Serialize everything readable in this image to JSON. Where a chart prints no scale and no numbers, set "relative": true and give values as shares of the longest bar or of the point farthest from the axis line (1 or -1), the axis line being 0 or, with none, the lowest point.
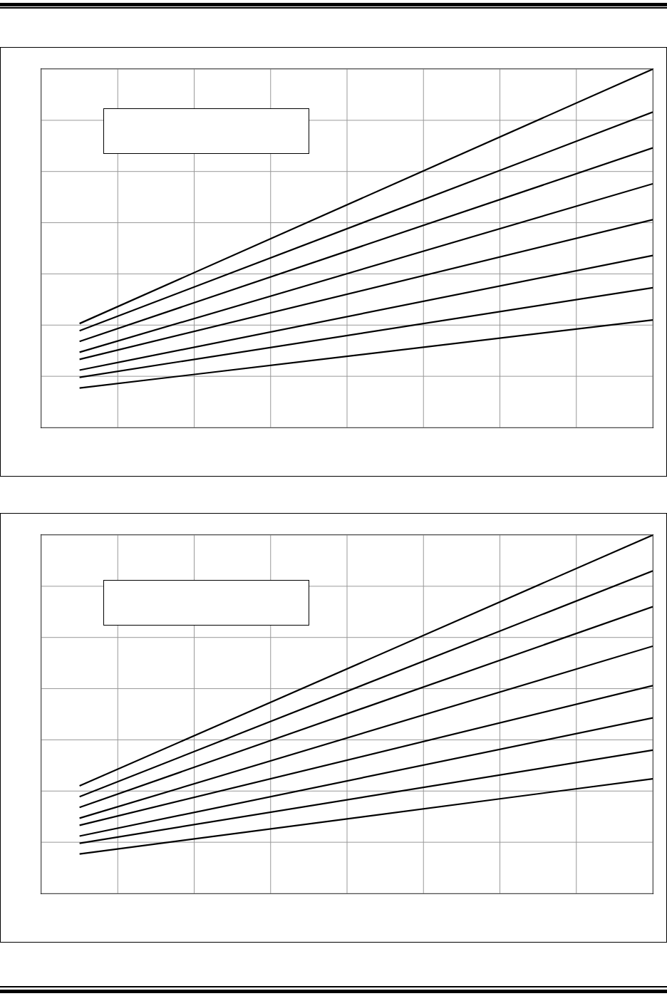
{
  "chart_data": [
    {
      "type": "line",
      "relative": true,
      "grid": true,
      "legend": false,
      "marker": "none",
      "line_style": "solid",
      "categories": [
        null,
        null,
        null,
        null,
        null,
        null,
        null,
        null,
        null,
        null,
        null,
        null,
        null,
        null,
        null,
        null,
        null
      ],
      "series": [
        {
          "color": "#000000",
          "values": [
            null,
            0.29,
            null,
            null,
            null,
            null,
            null,
            null,
            null,
            null,
            null,
            null,
            null,
            null,
            null,
            null,
            1
          ]
        },
        {
          "color": "#000000",
          "values": [
            null,
            0.27,
            null,
            null,
            null,
            null,
            null,
            null,
            null,
            null,
            null,
            null,
            null,
            null,
            null,
            null,
            0.88
          ]
        },
        {
          "color": "#000000",
          "values": [
            null,
            0.24,
            null,
            null,
            null,
            null,
            null,
            null,
            null,
            null,
            null,
            null,
            null,
            null,
            null,
            null,
            0.78
          ]
        },
        {
          "color": "#000000",
          "values": [
            null,
            0.21,
            null,
            null,
            null,
            null,
            null,
            null,
            null,
            null,
            null,
            null,
            null,
            null,
            null,
            null,
            0.68
          ]
        },
        {
          "color": "#000000",
          "values": [
            null,
            0.19,
            null,
            null,
            null,
            null,
            null,
            null,
            null,
            null,
            null,
            null,
            null,
            null,
            null,
            null,
            0.58
          ]
        },
        {
          "color": "#000000",
          "values": [
            null,
            0.16,
            null,
            null,
            null,
            null,
            null,
            null,
            null,
            null,
            null,
            null,
            null,
            null,
            null,
            null,
            0.48
          ]
        },
        {
          "color": "#000000",
          "values": [
            null,
            0.14,
            null,
            null,
            null,
            null,
            null,
            null,
            null,
            null,
            null,
            null,
            null,
            null,
            null,
            null,
            0.39
          ]
        },
        {
          "color": "#000000",
          "values": [
            null,
            0.11,
            null,
            null,
            null,
            null,
            null,
            null,
            null,
            null,
            null,
            null,
            null,
            null,
            null,
            null,
            0.3
          ]
        }
      ]
    },
    {
      "type": "line",
      "relative": true,
      "grid": true,
      "legend": false,
      "marker": "none",
      "line_style": "solid",
      "categories": [
        null,
        null,
        null,
        null,
        null,
        null,
        null,
        null,
        null,
        null,
        null,
        null,
        null,
        null,
        null,
        null,
        null
      ],
      "series": [
        {
          "color": "#000000",
          "values": [
            null,
            0.3,
            null,
            null,
            null,
            null,
            null,
            null,
            null,
            null,
            null,
            null,
            null,
            null,
            null,
            null,
            1
          ]
        },
        {
          "color": "#000000",
          "values": [
            null,
            0.27,
            null,
            null,
            null,
            null,
            null,
            null,
            null,
            null,
            null,
            null,
            null,
            null,
            null,
            null,
            0.9
          ]
        },
        {
          "color": "#000000",
          "values": [
            null,
            0.24,
            null,
            null,
            null,
            null,
            null,
            null,
            null,
            null,
            null,
            null,
            null,
            null,
            null,
            null,
            0.8
          ]
        },
        {
          "color": "#000000",
          "values": [
            null,
            0.21,
            null,
            null,
            null,
            null,
            null,
            null,
            null,
            null,
            null,
            null,
            null,
            null,
            null,
            null,
            0.69
          ]
        },
        {
          "color": "#000000",
          "values": [
            null,
            0.19,
            null,
            null,
            null,
            null,
            null,
            null,
            null,
            null,
            null,
            null,
            null,
            null,
            null,
            null,
            0.58
          ]
        },
        {
          "color": "#000000",
          "values": [
            null,
            0.16,
            null,
            null,
            null,
            null,
            null,
            null,
            null,
            null,
            null,
            null,
            null,
            null,
            null,
            null,
            0.49
          ]
        },
        {
          "color": "#000000",
          "values": [
            null,
            0.14,
            null,
            null,
            null,
            null,
            null,
            null,
            null,
            null,
            null,
            null,
            null,
            null,
            null,
            null,
            0.4
          ]
        },
        {
          "color": "#000000",
          "values": [
            null,
            0.11,
            null,
            null,
            null,
            null,
            null,
            null,
            null,
            null,
            null,
            null,
            null,
            null,
            null,
            null,
            0.32
          ]
        }
      ]
    }
  ]
}
